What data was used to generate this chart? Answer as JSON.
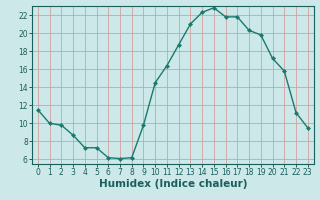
{
  "x": [
    0,
    1,
    2,
    3,
    4,
    5,
    6,
    7,
    8,
    9,
    10,
    11,
    12,
    13,
    14,
    15,
    16,
    17,
    18,
    19,
    20,
    21,
    22,
    23
  ],
  "y": [
    11.5,
    10.0,
    9.8,
    8.7,
    7.3,
    7.3,
    6.2,
    6.1,
    6.2,
    9.8,
    14.5,
    16.4,
    18.7,
    21.0,
    22.3,
    22.8,
    21.8,
    21.8,
    20.3,
    19.8,
    17.2,
    15.8,
    11.2,
    9.5
  ],
  "line_color": "#1a7a6e",
  "marker": "D",
  "marker_size": 2.0,
  "bg_color": "#cce8e8",
  "grid_color": "#d4a0a0",
  "xlabel": "Humidex (Indice chaleur)",
  "xlim": [
    -0.5,
    23.5
  ],
  "ylim": [
    5.5,
    23.0
  ],
  "yticks": [
    6,
    8,
    10,
    12,
    14,
    16,
    18,
    20,
    22
  ],
  "xticks": [
    0,
    1,
    2,
    3,
    4,
    5,
    6,
    7,
    8,
    9,
    10,
    11,
    12,
    13,
    14,
    15,
    16,
    17,
    18,
    19,
    20,
    21,
    22,
    23
  ],
  "tick_labelsize": 5.5,
  "xlabel_fontsize": 7.5,
  "axis_color": "#1a5f5a",
  "linewidth": 1.0
}
